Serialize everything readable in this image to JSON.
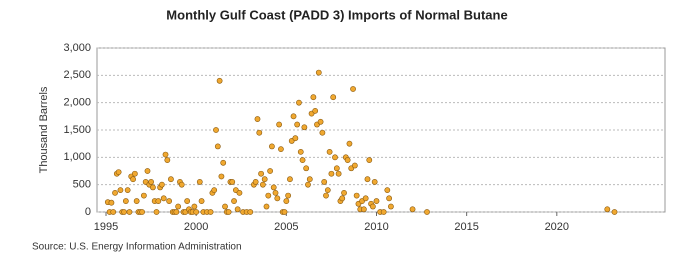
{
  "chart_data": {
    "type": "scatter",
    "title": "Monthly Gulf Coast (PADD 3) Imports of Normal Butane",
    "y_label": "Thousand Barrels",
    "source": "Source: U.S. Energy Information Administration",
    "color": "#f0a830",
    "xlim": [
      1994.5,
      2026
    ],
    "ylim": [
      0,
      3000
    ],
    "xticks": [
      1995,
      2000,
      2005,
      2010,
      2015,
      2020
    ],
    "yticks": [
      0,
      {
        "value": 500,
        "label": "500"
      },
      {
        "value": 1000,
        "label": "1,000"
      },
      {
        "value": 1500,
        "label": "1,500"
      },
      {
        "value": 2000,
        "label": "2,000"
      },
      {
        "value": 2500,
        "label": "2,500"
      },
      {
        "value": 3000,
        "label": "3,000"
      }
    ],
    "grid": true,
    "x": [
      1995.1,
      1995.2,
      1995.3,
      1995.4,
      1995.5,
      1995.6,
      1995.7,
      1995.8,
      1995.9,
      1996.0,
      1996.1,
      1996.2,
      1996.3,
      1996.4,
      1996.5,
      1996.6,
      1996.7,
      1996.8,
      1996.9,
      1997.0,
      1997.1,
      1997.2,
      1997.3,
      1997.4,
      1997.5,
      1997.6,
      1997.7,
      1997.8,
      1997.9,
      1998.0,
      1998.1,
      1998.2,
      1998.3,
      1998.4,
      1998.5,
      1998.6,
      1998.7,
      1998.8,
      1998.9,
      1999.0,
      1999.1,
      1999.2,
      1999.3,
      1999.4,
      1999.5,
      1999.6,
      1999.7,
      1999.8,
      1999.9,
      2000.0,
      2000.2,
      2000.3,
      2000.4,
      2000.6,
      2000.8,
      2000.9,
      2001.0,
      2001.1,
      2001.2,
      2001.3,
      2001.4,
      2001.5,
      2001.6,
      2001.7,
      2001.8,
      2001.9,
      2002.0,
      2002.1,
      2002.2,
      2002.3,
      2002.4,
      2002.6,
      2002.8,
      2003.0,
      2003.2,
      2003.3,
      2003.4,
      2003.5,
      2003.6,
      2003.7,
      2003.8,
      2003.9,
      2004.0,
      2004.1,
      2004.2,
      2004.3,
      2004.4,
      2004.5,
      2004.6,
      2004.7,
      2004.8,
      2004.9,
      2005.0,
      2005.1,
      2005.2,
      2005.3,
      2005.4,
      2005.5,
      2005.6,
      2005.7,
      2005.8,
      2005.9,
      2006.0,
      2006.1,
      2006.2,
      2006.3,
      2006.4,
      2006.5,
      2006.6,
      2006.7,
      2006.8,
      2006.9,
      2007.0,
      2007.1,
      2007.2,
      2007.3,
      2007.4,
      2007.5,
      2007.6,
      2007.7,
      2007.8,
      2007.9,
      2008.0,
      2008.1,
      2008.2,
      2008.3,
      2008.4,
      2008.5,
      2008.6,
      2008.7,
      2008.8,
      2008.9,
      2009.0,
      2009.1,
      2009.2,
      2009.3,
      2009.4,
      2009.5,
      2009.6,
      2009.7,
      2009.8,
      2009.9,
      2010.0,
      2010.2,
      2010.4,
      2010.6,
      2010.7,
      2010.8,
      2012.0,
      2012.8,
      2022.8,
      2023.2
    ],
    "values": [
      180,
      0,
      170,
      0,
      350,
      700,
      730,
      400,
      0,
      0,
      200,
      400,
      0,
      650,
      600,
      700,
      200,
      0,
      0,
      0,
      300,
      550,
      750,
      500,
      550,
      450,
      200,
      0,
      200,
      450,
      500,
      250,
      1050,
      950,
      200,
      600,
      0,
      0,
      0,
      100,
      550,
      500,
      0,
      0,
      200,
      50,
      0,
      0,
      100,
      0,
      550,
      200,
      0,
      0,
      0,
      350,
      400,
      1500,
      1200,
      2400,
      650,
      900,
      100,
      0,
      0,
      550,
      550,
      200,
      400,
      50,
      350,
      0,
      0,
      0,
      500,
      550,
      1700,
      1450,
      700,
      500,
      600,
      100,
      300,
      750,
      1200,
      450,
      350,
      250,
      1600,
      1150,
      0,
      0,
      200,
      300,
      600,
      1300,
      1750,
      1350,
      1600,
      2000,
      1100,
      950,
      1550,
      800,
      500,
      600,
      1800,
      2100,
      1850,
      1600,
      2550,
      1650,
      1450,
      550,
      300,
      400,
      1100,
      700,
      2100,
      1000,
      800,
      700,
      200,
      250,
      350,
      1000,
      950,
      1250,
      800,
      2250,
      850,
      300,
      150,
      50,
      200,
      50,
      250,
      600,
      950,
      150,
      100,
      550,
      200,
      0,
      0,
      400,
      250,
      100,
      50,
      0,
      50,
      0
    ]
  }
}
